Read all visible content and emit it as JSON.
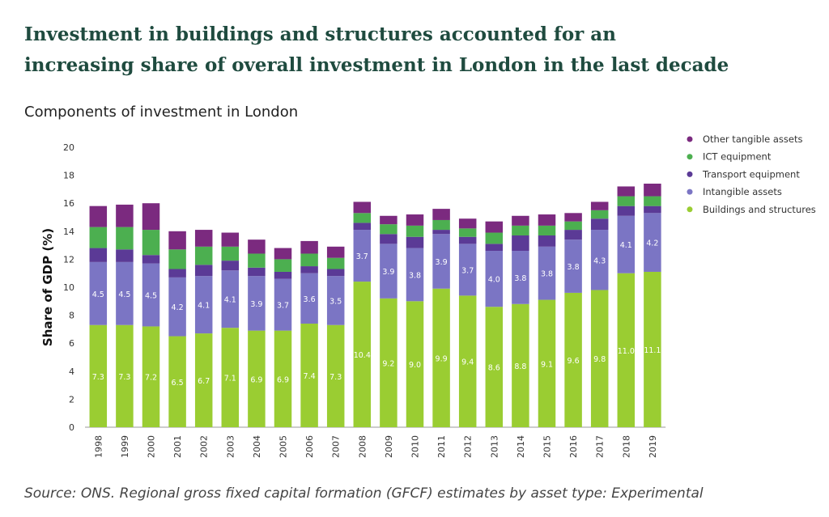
{
  "headline": {
    "line1": "Investment in buildings and structures accounted for an",
    "line2": "increasing share of overall investment in London in the last decade"
  },
  "source": "Source: ONS. Regional gross fixed capital formation (GFCF) estimates by asset type: Experimental",
  "chart_data": {
    "type": "bar",
    "stacked": true,
    "title": "Components of investment in London",
    "xlabel": "",
    "ylabel": "Share of GDP (%)",
    "ylim": [
      0,
      20
    ],
    "yticks": [
      0,
      2,
      4,
      6,
      8,
      10,
      12,
      14,
      16,
      18,
      20
    ],
    "legend_position": "top-right",
    "categories": [
      "1998",
      "1999",
      "2000",
      "2001",
      "2002",
      "2003",
      "2004",
      "2005",
      "2006",
      "2007",
      "2008",
      "2009",
      "2010",
      "2011",
      "2012",
      "2013",
      "2014",
      "2015",
      "2016",
      "2017",
      "2018",
      "2019"
    ],
    "series": [
      {
        "name": "Buildings and structures",
        "color": "#9acd32",
        "labeled": true,
        "values": [
          7.3,
          7.3,
          7.2,
          6.5,
          6.7,
          7.1,
          6.9,
          6.9,
          7.4,
          7.3,
          10.4,
          9.2,
          9.0,
          9.9,
          9.4,
          8.6,
          8.8,
          9.1,
          9.6,
          9.8,
          11.0,
          11.1
        ]
      },
      {
        "name": "Intangible assets",
        "color": "#7b75c4",
        "labeled": true,
        "values": [
          4.5,
          4.5,
          4.5,
          4.2,
          4.1,
          4.1,
          3.9,
          3.7,
          3.6,
          3.5,
          3.7,
          3.9,
          3.8,
          3.9,
          3.7,
          4.0,
          3.8,
          3.8,
          3.8,
          4.3,
          4.1,
          4.2
        ]
      },
      {
        "name": "Transport equipment",
        "color": "#5b3a96",
        "labeled": false,
        "values": [
          1.0,
          0.9,
          0.6,
          0.6,
          0.8,
          0.7,
          0.6,
          0.5,
          0.5,
          0.5,
          0.5,
          0.7,
          0.8,
          0.3,
          0.5,
          0.5,
          1.1,
          0.8,
          0.7,
          0.8,
          0.7,
          0.5
        ]
      },
      {
        "name": "ICT equipment",
        "color": "#4caf50",
        "labeled": false,
        "values": [
          1.5,
          1.6,
          1.8,
          1.4,
          1.3,
          1.0,
          1.0,
          0.9,
          0.9,
          0.8,
          0.7,
          0.7,
          0.8,
          0.7,
          0.6,
          0.8,
          0.7,
          0.7,
          0.6,
          0.6,
          0.7,
          0.7
        ]
      },
      {
        "name": "Other tangible assets",
        "color": "#7b2a7f",
        "labeled": false,
        "values": [
          1.5,
          1.6,
          1.9,
          1.3,
          1.2,
          1.0,
          1.0,
          0.8,
          0.9,
          0.8,
          0.8,
          0.6,
          0.8,
          0.8,
          0.7,
          0.8,
          0.7,
          0.8,
          0.6,
          0.6,
          0.7,
          0.9
        ]
      }
    ]
  }
}
